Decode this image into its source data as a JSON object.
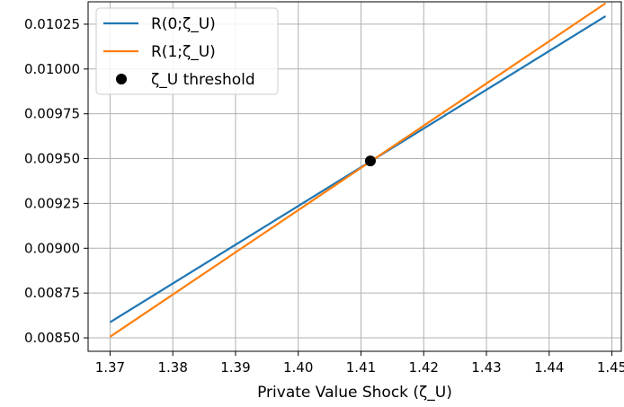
{
  "chart_data": {
    "type": "line",
    "title": "",
    "xlabel": "Private Value Shock (ζ_U)",
    "ylabel": "",
    "xlim": [
      1.3665,
      1.4515
    ],
    "ylim": [
      0.008425,
      0.010375
    ],
    "grid": true,
    "legend_position": "top-left",
    "x_ticks": [
      1.37,
      1.38,
      1.39,
      1.4,
      1.41,
      1.42,
      1.43,
      1.44,
      1.45
    ],
    "x_tick_labels": [
      "1.37",
      "1.38",
      "1.39",
      "1.40",
      "1.41",
      "1.42",
      "1.43",
      "1.44",
      "1.45"
    ],
    "y_ticks": [
      0.0085,
      0.00875,
      0.009,
      0.00925,
      0.0095,
      0.00975,
      0.01,
      0.01025
    ],
    "y_tick_labels": [
      "0.00850",
      "0.00875",
      "0.00900",
      "0.00925",
      "0.00950",
      "0.00975",
      "0.01000",
      "0.01025"
    ],
    "series": [
      {
        "name": "R(0;ζ_U)",
        "kind": "line",
        "color": "#1f77b4",
        "x": [
          1.37,
          1.449
        ],
        "y": [
          0.008587,
          0.010295
        ]
      },
      {
        "name": "R(1;ζ_U)",
        "kind": "line",
        "color": "#ff7f0e",
        "x": [
          1.37,
          1.449
        ],
        "y": [
          0.008506,
          0.010367
        ]
      },
      {
        "name": "ζ_U threshold",
        "kind": "scatter",
        "color": "#000000",
        "x": [
          1.4115
        ],
        "y": [
          0.009487
        ]
      }
    ]
  }
}
